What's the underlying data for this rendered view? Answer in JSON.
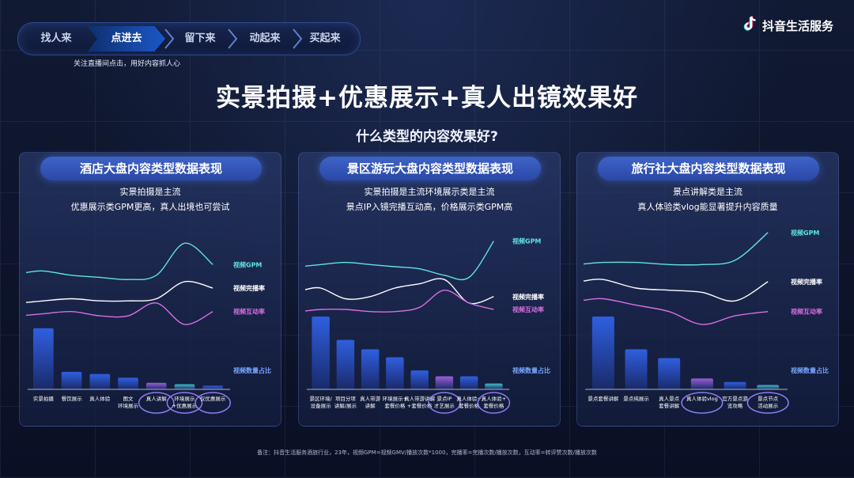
{
  "nav": {
    "steps": [
      "找人来",
      "点进去",
      "留下来",
      "动起来",
      "买起来"
    ],
    "active_index": 1,
    "active_note": "关注直播间点击，用好内容抓人心"
  },
  "brand": {
    "name": "抖音生活服务"
  },
  "title": "实景拍摄+优惠展示+真人出镜效果好",
  "subtitle": "什么类型的内容效果好?",
  "footnote": "备注：抖音生活服务酒旅行业，23年，视频GPM=视频GMV/播放次数*1000，完播率=完播次数/播放次数，互动率=转评赞次数/播放次数",
  "colors": {
    "gpm": "#5ee3e0",
    "completion": "#ffffff",
    "interaction": "#d76fe0",
    "bar_blue": "#2f5fe0",
    "bar_purple": "#9b5fd6",
    "bar_teal": "#3fbfc4",
    "highlight": "#8d7df0"
  },
  "series_labels": {
    "gpm": "视频GPM",
    "completion": "视频完播率",
    "interaction": "视频互动率",
    "share": "视频数量占比"
  },
  "panels": [
    {
      "header": "酒店大盘内容类型数据表现",
      "desc1": "实景拍摄是主流",
      "desc2": "优惠展示类GPM更高，真人出境也可尝试",
      "chart_data": {
        "type": "bar",
        "categories": [
          "实景拍摄",
          "餐饮展示",
          "真人体验",
          "图文\n环境展示",
          "真人讲解",
          "环境展示\n+优惠展示",
          "仅优惠展示"
        ],
        "values": [
          84,
          24,
          21,
          16,
          9,
          7,
          5
        ],
        "bar_colors": [
          "bar_blue",
          "bar_blue",
          "bar_blue",
          "bar_blue",
          "bar_purple",
          "bar_teal",
          "bar_blue"
        ],
        "highlighted": [
          4,
          5,
          6
        ],
        "gpm": [
          56,
          52,
          50,
          48,
          52,
          82,
          62
        ],
        "completion": [
          28,
          30,
          28,
          28,
          30,
          46,
          40
        ],
        "interaction": [
          16,
          18,
          14,
          14,
          26,
          6,
          18
        ]
      }
    },
    {
      "header": "景区游玩大盘内容类型数据表现",
      "desc1": "实景拍摄是主流环境展示类是主流",
      "desc2": "景点IP入镜完播互动高，价格展示类GPM高",
      "chart_data": {
        "type": "bar",
        "categories": [
          "景区环境/\n设备展示",
          "项目分项\n讲解/展示",
          "真人带游\n讲解",
          "环境展示+\n套餐价格",
          "真人带游讲解\n+套餐价格",
          "景点IP\n才艺展示",
          "真人体验+\n套餐价格",
          "真人体验+\n套餐价格"
        ],
        "values": [
          100,
          68,
          55,
          44,
          26,
          18,
          18,
          8
        ],
        "bar_colors": [
          "bar_blue",
          "bar_blue",
          "bar_blue",
          "bar_blue",
          "bar_blue",
          "bar_purple",
          "bar_blue",
          "bar_teal"
        ],
        "highlighted": [
          5,
          7
        ],
        "gpm": [
          62,
          64,
          62,
          60,
          58,
          52,
          50,
          84
        ],
        "completion": [
          40,
          30,
          32,
          40,
          44,
          48,
          26,
          32
        ],
        "interaction": [
          20,
          20,
          18,
          18,
          22,
          38,
          26,
          20
        ]
      }
    },
    {
      "header": "旅行社大盘内容类型数据表现",
      "desc1": "景点讲解类是主流",
      "desc2": "真人体验类vlog能显著提升内容质量",
      "chart_data": {
        "type": "bar",
        "categories": [
          "景点套餐讲解",
          "景点纯展示",
          "真人景点\n套餐讲解",
          "真人体验vlog",
          "官方景点游\n览攻略",
          "景点节点\n活动展示"
        ],
        "values": [
          100,
          55,
          43,
          15,
          10,
          6
        ],
        "bar_colors": [
          "bar_blue",
          "bar_blue",
          "bar_blue",
          "bar_purple",
          "bar_blue",
          "bar_teal"
        ],
        "highlighted": [
          3,
          5
        ],
        "gpm": [
          64,
          64,
          62,
          62,
          66,
          92
        ],
        "completion": [
          48,
          40,
          38,
          36,
          28,
          46
        ],
        "interaction": [
          30,
          24,
          18,
          6,
          14,
          18
        ]
      }
    }
  ]
}
